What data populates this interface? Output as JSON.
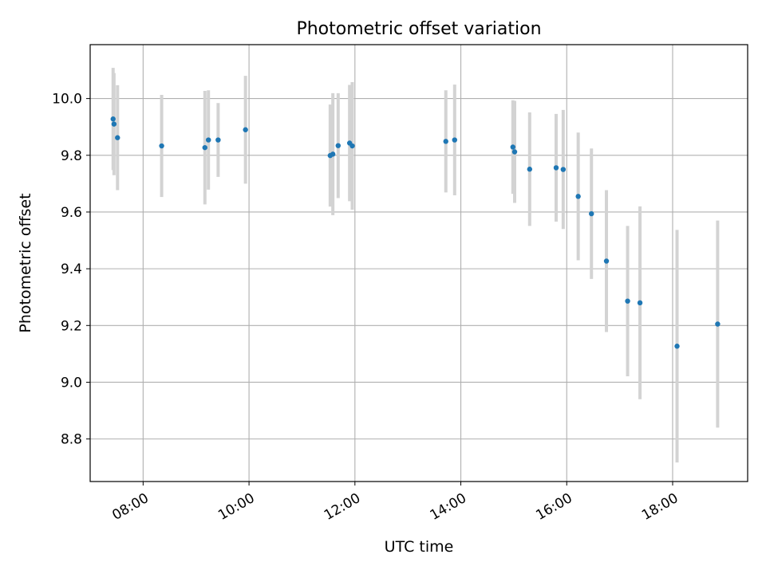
{
  "chart_data": {
    "type": "scatter",
    "title": "Photometric offset variation",
    "xlabel": "UTC time",
    "ylabel": "Photometric offset",
    "xlim": [
      "07:00",
      "19:25"
    ],
    "ylim": [
      8.65,
      10.19
    ],
    "grid": true,
    "x_ticks": [
      "08:00",
      "10:00",
      "12:00",
      "14:00",
      "16:00",
      "18:00"
    ],
    "y_ticks": [
      "8.8",
      "9.0",
      "9.2",
      "9.4",
      "9.6",
      "9.8",
      "10.0"
    ],
    "point_color": "#1f77b4",
    "errorbar_color": "#d3d3d3",
    "points": [
      {
        "x": "07:26",
        "y": 9.928,
        "err": 0.18
      },
      {
        "x": "07:27",
        "y": 9.91,
        "err": 0.18
      },
      {
        "x": "07:31",
        "y": 9.862,
        "err": 0.185
      },
      {
        "x": "08:21",
        "y": 9.833,
        "err": 0.18
      },
      {
        "x": "09:10",
        "y": 9.827,
        "err": 0.2
      },
      {
        "x": "09:14",
        "y": 9.854,
        "err": 0.175
      },
      {
        "x": "09:25",
        "y": 9.854,
        "err": 0.13
      },
      {
        "x": "09:56",
        "y": 9.89,
        "err": 0.19
      },
      {
        "x": "11:32",
        "y": 9.799,
        "err": 0.18
      },
      {
        "x": "11:35",
        "y": 9.804,
        "err": 0.215
      },
      {
        "x": "11:41",
        "y": 9.834,
        "err": 0.185
      },
      {
        "x": "11:54",
        "y": 9.843,
        "err": 0.205
      },
      {
        "x": "11:57",
        "y": 9.833,
        "err": 0.225
      },
      {
        "x": "13:43",
        "y": 9.849,
        "err": 0.18
      },
      {
        "x": "13:53",
        "y": 9.854,
        "err": 0.195
      },
      {
        "x": "14:59",
        "y": 9.829,
        "err": 0.165
      },
      {
        "x": "15:01",
        "y": 9.812,
        "err": 0.18
      },
      {
        "x": "15:18",
        "y": 9.751,
        "err": 0.2
      },
      {
        "x": "15:48",
        "y": 9.756,
        "err": 0.19
      },
      {
        "x": "15:56",
        "y": 9.75,
        "err": 0.21
      },
      {
        "x": "16:13",
        "y": 9.655,
        "err": 0.225
      },
      {
        "x": "16:28",
        "y": 9.594,
        "err": 0.23
      },
      {
        "x": "16:45",
        "y": 9.427,
        "err": 0.25
      },
      {
        "x": "17:09",
        "y": 9.286,
        "err": 0.265
      },
      {
        "x": "17:23",
        "y": 9.28,
        "err": 0.34
      },
      {
        "x": "18:05",
        "y": 9.127,
        "err": 0.41
      },
      {
        "x": "18:51",
        "y": 9.205,
        "err": 0.365
      }
    ]
  }
}
